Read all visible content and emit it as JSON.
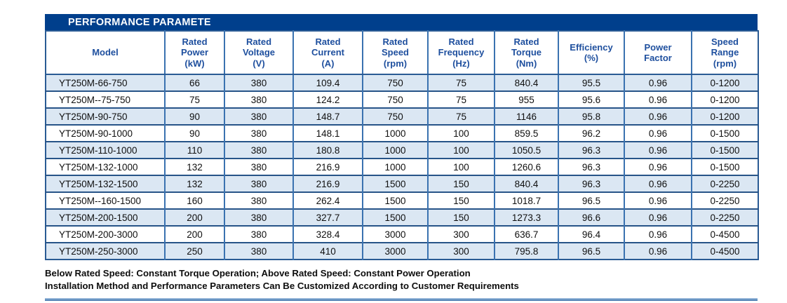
{
  "title": "PERFORMANCE PARAMETE",
  "table": {
    "headers": [
      "Model",
      "Rated\nPower\n(kW)",
      "Rated\nVoltage\n(V)",
      "Rated\nCurrent\n(A)",
      "Rated\nSpeed\n(rpm)",
      "Rated\nFrequency\n(Hz)",
      "Rated\nTorque\n(Nm)",
      "Efficiency\n(%)",
      "Power\nFactor",
      "Speed\nRange\n(rpm)"
    ],
    "rows": [
      [
        "YT250M-66-750",
        "66",
        "380",
        "109.4",
        "750",
        "75",
        "840.4",
        "95.5",
        "0.96",
        "0-1200"
      ],
      [
        "YT250M--75-750",
        "75",
        "380",
        "124.2",
        "750",
        "75",
        "955",
        "95.6",
        "0.96",
        "0-1200"
      ],
      [
        "YT250M-90-750",
        "90",
        "380",
        "148.7",
        "750",
        "75",
        "1146",
        "95.8",
        "0.96",
        "0-1200"
      ],
      [
        "YT250M-90-1000",
        "90",
        "380",
        "148.1",
        "1000",
        "100",
        "859.5",
        "96.2",
        "0.96",
        "0-1500"
      ],
      [
        "YT250M-110-1000",
        "110",
        "380",
        "180.8",
        "1000",
        "100",
        "1050.5",
        "96.3",
        "0.96",
        "0-1500"
      ],
      [
        "YT250M-132-1000",
        "132",
        "380",
        "216.9",
        "1000",
        "100",
        "1260.6",
        "96.3",
        "0.96",
        "0-1500"
      ],
      [
        "YT250M-132-1500",
        "132",
        "380",
        "216.9",
        "1500",
        "150",
        "840.4",
        "96.3",
        "0.96",
        "0-2250"
      ],
      [
        "YT250M--160-1500",
        "160",
        "380",
        "262.4",
        "1500",
        "150",
        "1018.7",
        "96.5",
        "0.96",
        "0-2250"
      ],
      [
        "YT250M-200-1500",
        "200",
        "380",
        "327.7",
        "1500",
        "150",
        "1273.3",
        "96.6",
        "0.96",
        "0-2250"
      ],
      [
        "YT250M-200-3000",
        "200",
        "380",
        "328.4",
        "3000",
        "300",
        "636.7",
        "96.4",
        "0.96",
        "0-4500"
      ],
      [
        "YT250M-250-3000",
        "250",
        "380",
        "410",
        "3000",
        "300",
        "795.8",
        "96.5",
        "0.96",
        "0-4500"
      ]
    ]
  },
  "notes": [
    "Below Rated Speed: Constant Torque Operation; Above Rated Speed: Constant Power Operation",
    "Installation Method and Performance Parameters Can Be Customized According to Customer Requirements"
  ],
  "colors": {
    "title_bar": "#003f8c",
    "header_text": "#1e4f9e",
    "row_stripe": "#dbe7f3",
    "grid_vertical": "#3a72b0",
    "grid_horizontal": "#275488",
    "accent_bar": "#497aad"
  }
}
